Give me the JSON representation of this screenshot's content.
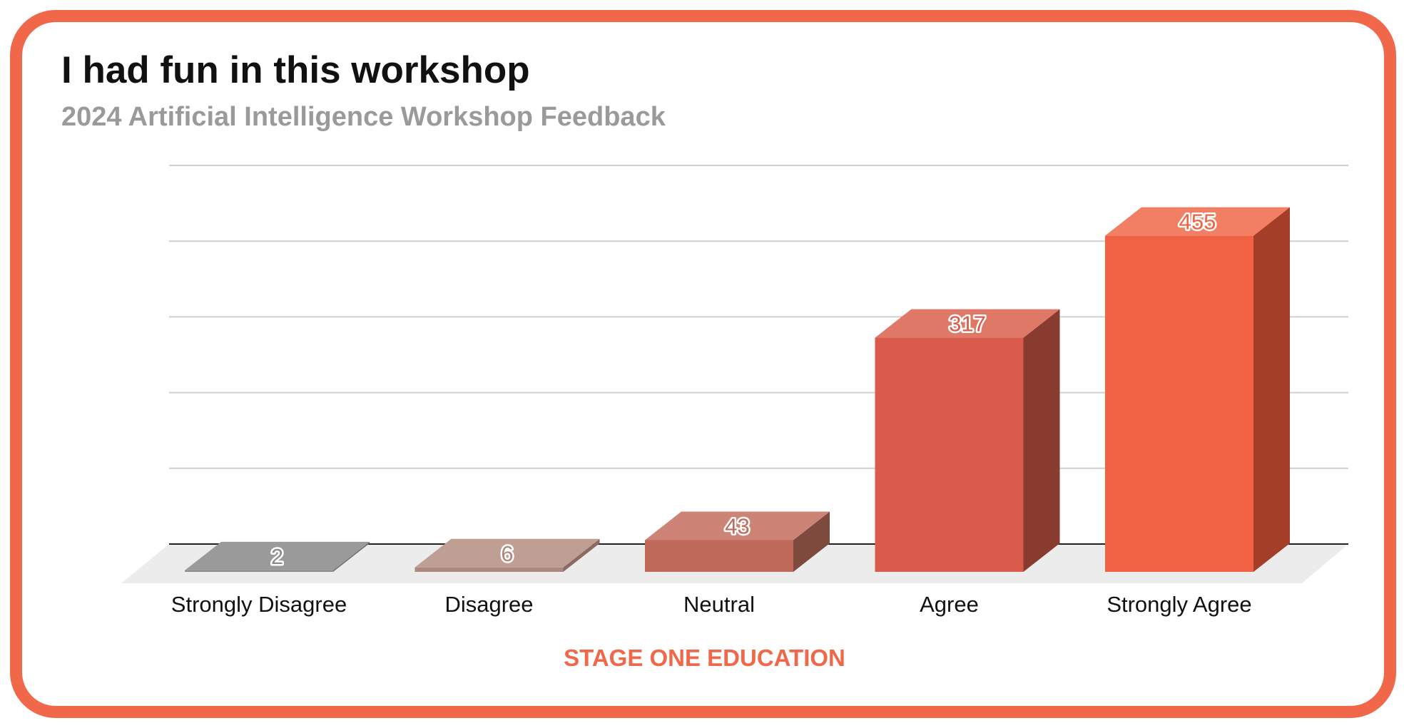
{
  "chart_data": {
    "type": "bar",
    "title": "I had fun in this workshop",
    "subtitle": "2024 Artificial Intelligence Workshop Feedback",
    "categories": [
      "Strongly Disagree",
      "Disagree",
      "Neutral",
      "Agree",
      "Strongly Agree"
    ],
    "values": [
      2,
      6,
      43,
      317,
      455
    ],
    "data_labels": [
      "2",
      "6",
      "43",
      "317",
      "455"
    ],
    "ylim": [
      0,
      500
    ],
    "grid": true,
    "style": "3d",
    "colors": {
      "front": [
        "#8c8c8c",
        "#ad887e",
        "#c06a5a",
        "#d95b4b",
        "#f06243"
      ],
      "top": [
        "#9a9a9a",
        "#bf9e94",
        "#cd8477",
        "#e07868",
        "#f27e63"
      ],
      "side": [
        "#707070",
        "#8b6a62",
        "#7f4a3e",
        "#8a3b30",
        "#a43e29"
      ]
    }
  },
  "footer": "STAGE ONE EDUCATION",
  "colors": {
    "accent": "#f0674a",
    "subtitle": "#9a9a9a"
  }
}
